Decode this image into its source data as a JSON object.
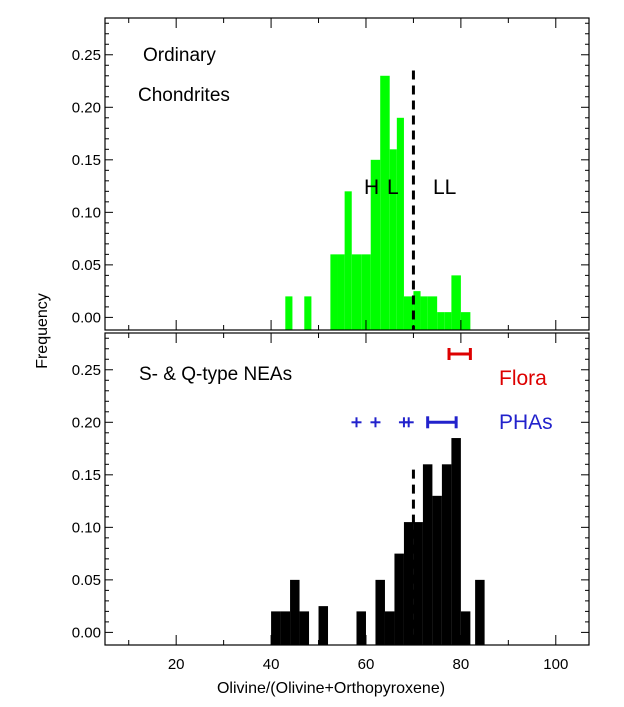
{
  "figure": {
    "y_axis_label": "Frequency",
    "x_axis_label": "Olivine/(Olivine+Orthopyroxene)"
  },
  "chart_data": [
    {
      "type": "bar",
      "panel": "top",
      "bar_color": "#00ff00",
      "annotations": [
        "Ordinary",
        "Chondrites",
        "H",
        "L",
        "LL"
      ],
      "divider_x": 70,
      "xlim": [
        5,
        107
      ],
      "ylim": [
        -0.012,
        0.285
      ],
      "x_ticks": [
        20,
        40,
        60,
        80,
        100
      ],
      "x_tick_labels": [
        "",
        "",
        "",
        "",
        ""
      ],
      "y_ticks": [
        0.0,
        0.05,
        0.1,
        0.15,
        0.2,
        0.25
      ],
      "y_tick_labels": [
        "0.00",
        "0.05",
        "0.10",
        "0.15",
        "0.20",
        "0.25"
      ],
      "bins": [
        {
          "x0": 43,
          "x1": 44.5,
          "value": 0.02
        },
        {
          "x0": 47,
          "x1": 48.5,
          "value": 0.02
        },
        {
          "x0": 52.5,
          "x1": 54,
          "value": 0.06
        },
        {
          "x0": 54,
          "x1": 55.5,
          "value": 0.06
        },
        {
          "x0": 55.5,
          "x1": 57,
          "value": 0.12
        },
        {
          "x0": 57,
          "x1": 59,
          "value": 0.06
        },
        {
          "x0": 59,
          "x1": 61,
          "value": 0.06
        },
        {
          "x0": 61,
          "x1": 63,
          "value": 0.15
        },
        {
          "x0": 63,
          "x1": 65,
          "value": 0.23
        },
        {
          "x0": 65,
          "x1": 66.5,
          "value": 0.16
        },
        {
          "x0": 66.5,
          "x1": 68,
          "value": 0.19
        },
        {
          "x0": 68,
          "x1": 70,
          "value": 0.02
        },
        {
          "x0": 70,
          "x1": 71.5,
          "value": 0.025
        },
        {
          "x0": 71.5,
          "x1": 73,
          "value": 0.02
        },
        {
          "x0": 73,
          "x1": 75,
          "value": 0.02
        },
        {
          "x0": 75,
          "x1": 76.5,
          "value": 0.005
        },
        {
          "x0": 76.5,
          "x1": 78,
          "value": 0.005
        },
        {
          "x0": 78,
          "x1": 80,
          "value": 0.04
        },
        {
          "x0": 80,
          "x1": 82,
          "value": 0.005
        }
      ]
    },
    {
      "type": "bar",
      "panel": "bottom",
      "bar_color": "#000000",
      "annotations": [
        "S- & Q-type NEAs",
        "Flora",
        "PHAs"
      ],
      "divider_x": 70,
      "xlim": [
        5,
        107
      ],
      "ylim": [
        -0.012,
        0.285
      ],
      "x_ticks": [
        20,
        40,
        60,
        80,
        100
      ],
      "x_tick_labels": [
        "20",
        "40",
        "60",
        "80",
        "100"
      ],
      "y_ticks": [
        0.0,
        0.05,
        0.1,
        0.15,
        0.2,
        0.25
      ],
      "y_tick_labels": [
        "0.00",
        "0.05",
        "0.10",
        "0.15",
        "0.20",
        "0.25"
      ],
      "bins": [
        {
          "x0": 40,
          "x1": 42,
          "value": 0.02
        },
        {
          "x0": 42,
          "x1": 44,
          "value": 0.02
        },
        {
          "x0": 44,
          "x1": 46,
          "value": 0.05
        },
        {
          "x0": 46,
          "x1": 48,
          "value": 0.02
        },
        {
          "x0": 50,
          "x1": 52,
          "value": 0.025
        },
        {
          "x0": 58,
          "x1": 60,
          "value": 0.02
        },
        {
          "x0": 62,
          "x1": 64,
          "value": 0.05
        },
        {
          "x0": 64,
          "x1": 66,
          "value": 0.02
        },
        {
          "x0": 66,
          "x1": 68,
          "value": 0.075
        },
        {
          "x0": 68,
          "x1": 70,
          "value": 0.105
        },
        {
          "x0": 70,
          "x1": 72,
          "value": 0.105
        },
        {
          "x0": 72,
          "x1": 74,
          "value": 0.16
        },
        {
          "x0": 74,
          "x1": 76,
          "value": 0.13
        },
        {
          "x0": 76,
          "x1": 78,
          "value": 0.16
        },
        {
          "x0": 78,
          "x1": 80,
          "value": 0.185
        },
        {
          "x0": 80,
          "x1": 82,
          "value": 0.02
        },
        {
          "x0": 83,
          "x1": 85,
          "value": 0.05
        }
      ],
      "flora_range": {
        "y": 0.265,
        "xmin": 77.5,
        "xmax": 82,
        "color": "#dd0000"
      },
      "pha_points": {
        "y": 0.2,
        "x": [
          58,
          62,
          68,
          69
        ],
        "color": "#2222cc"
      },
      "pha_range": {
        "y": 0.2,
        "xmin": 73,
        "xmax": 79,
        "color": "#2222cc"
      }
    }
  ]
}
